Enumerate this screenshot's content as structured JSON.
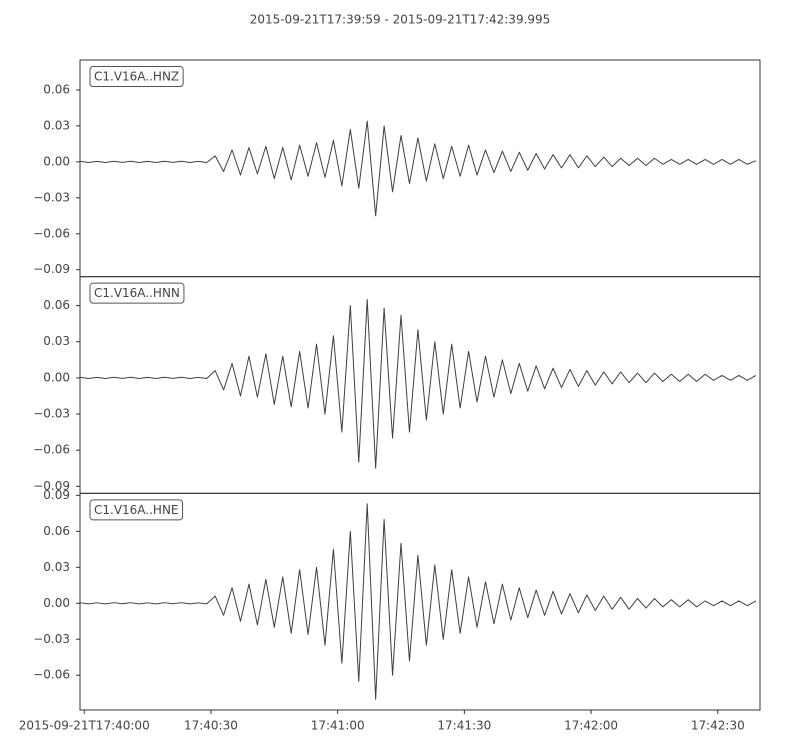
{
  "chart_data": {
    "type": "line",
    "title": "2015-09-21T17:39:59  -  2015-09-21T17:42:39.995",
    "xlim": [
      63599,
      63759.995
    ],
    "xticks": [
      {
        "value": 63600,
        "label": "2015-09-21T17:40:00"
      },
      {
        "value": 63630,
        "label": "17:40:30"
      },
      {
        "value": 63660,
        "label": "17:41:00"
      },
      {
        "value": 63690,
        "label": "17:41:30"
      },
      {
        "value": 63720,
        "label": "17:42:00"
      },
      {
        "value": 63750,
        "label": "17:42:30"
      }
    ],
    "x": [
      63599,
      63601,
      63603,
      63605,
      63607,
      63609,
      63611,
      63613,
      63615,
      63617,
      63619,
      63621,
      63623,
      63625,
      63627,
      63629,
      63631,
      63633,
      63635,
      63637,
      63639,
      63641,
      63643,
      63645,
      63647,
      63649,
      63651,
      63653,
      63655,
      63657,
      63659,
      63661,
      63663,
      63665,
      63667,
      63669,
      63671,
      63673,
      63675,
      63677,
      63679,
      63681,
      63683,
      63685,
      63687,
      63689,
      63691,
      63693,
      63695,
      63697,
      63699,
      63701,
      63703,
      63705,
      63707,
      63709,
      63711,
      63713,
      63715,
      63717,
      63719,
      63721,
      63723,
      63725,
      63727,
      63729,
      63731,
      63733,
      63735,
      63737,
      63739,
      63741,
      63743,
      63745,
      63747,
      63749,
      63751,
      63753,
      63755,
      63757,
      63759
    ],
    "series": [
      {
        "name": "C1.V16A..HNZ",
        "color": "#404040",
        "ylim": [
          -0.0958,
          0.085
        ],
        "yticks": [
          0.06,
          0.03,
          {
            "value": 0,
            "label": "0.00"
          },
          {
            "value": -0.03,
            "label": "−0.03"
          },
          {
            "value": -0.06,
            "label": "−0.06"
          },
          {
            "value": -0.09,
            "label": "−0.09"
          }
        ],
        "values": [
          0.0005,
          -0.0005,
          0.0004,
          -0.0005,
          0.0005,
          -0.0004,
          0.0005,
          -0.0005,
          0.0004,
          -0.0005,
          0.0005,
          -0.0004,
          0.0005,
          -0.0005,
          0.0004,
          -0.0005,
          0.005,
          -0.008,
          0.01,
          -0.011,
          0.012,
          -0.01,
          0.013,
          -0.014,
          0.012,
          -0.015,
          0.014,
          -0.012,
          0.016,
          -0.013,
          0.018,
          -0.02,
          0.027,
          -0.022,
          0.034,
          -0.045,
          0.03,
          -0.025,
          0.022,
          -0.018,
          0.02,
          -0.016,
          0.015,
          -0.014,
          0.013,
          -0.012,
          0.014,
          -0.011,
          0.01,
          -0.009,
          0.009,
          -0.008,
          0.008,
          -0.007,
          0.007,
          -0.006,
          0.006,
          -0.005,
          0.006,
          -0.005,
          0.005,
          -0.004,
          0.004,
          -0.004,
          0.003,
          -0.003,
          0.003,
          -0.003,
          0.003,
          -0.002,
          0.002,
          -0.002,
          0.002,
          -0.002,
          0.002,
          -0.002,
          0.002,
          -0.002,
          0.002,
          -0.002,
          0.001
        ]
      },
      {
        "name": "C1.V16A..HNN",
        "color": "#404040",
        "ylim": [
          -0.0958,
          0.084
        ],
        "yticks": [
          0.06,
          0.03,
          {
            "value": 0,
            "label": "0.00"
          },
          {
            "value": -0.03,
            "label": "−0.03"
          },
          {
            "value": -0.06,
            "label": "−0.06"
          },
          {
            "value": -0.09,
            "label": "−0.09"
          }
        ],
        "values": [
          0.0005,
          -0.0005,
          0.0004,
          -0.0005,
          0.0005,
          -0.0004,
          0.0005,
          -0.0005,
          0.0004,
          -0.0005,
          0.0005,
          -0.0004,
          0.0005,
          -0.0005,
          0.0004,
          -0.0005,
          0.006,
          -0.01,
          0.012,
          -0.015,
          0.018,
          -0.016,
          0.02,
          -0.022,
          0.018,
          -0.024,
          0.022,
          -0.025,
          0.028,
          -0.03,
          0.035,
          -0.045,
          0.06,
          -0.07,
          0.065,
          -0.075,
          0.058,
          -0.05,
          0.052,
          -0.045,
          0.04,
          -0.035,
          0.03,
          -0.03,
          0.028,
          -0.025,
          0.022,
          -0.02,
          0.018,
          -0.016,
          0.015,
          -0.013,
          0.012,
          -0.011,
          0.01,
          -0.009,
          0.008,
          -0.008,
          0.007,
          -0.007,
          0.006,
          -0.006,
          0.005,
          -0.005,
          0.005,
          -0.004,
          0.004,
          -0.004,
          0.004,
          -0.003,
          0.003,
          -0.003,
          0.003,
          -0.003,
          0.003,
          -0.002,
          0.002,
          -0.002,
          0.002,
          -0.002,
          0.002
        ]
      },
      {
        "name": "C1.V16A..HNE",
        "color": "#404040",
        "ylim": [
          -0.089,
          0.0917
        ],
        "yticks": [
          0.09,
          0.06,
          0.03,
          {
            "value": 0,
            "label": "0.00"
          },
          {
            "value": -0.03,
            "label": "−0.03"
          },
          {
            "value": -0.06,
            "label": "−0.06"
          }
        ],
        "values": [
          0.0005,
          -0.0005,
          0.0004,
          -0.0005,
          0.0005,
          -0.0004,
          0.0005,
          -0.0005,
          0.0004,
          -0.0005,
          0.0005,
          -0.0004,
          0.0005,
          -0.0005,
          0.0004,
          -0.0005,
          0.006,
          -0.01,
          0.013,
          -0.015,
          0.016,
          -0.018,
          0.02,
          -0.02,
          0.022,
          -0.025,
          0.028,
          -0.026,
          0.03,
          -0.035,
          0.045,
          -0.05,
          0.06,
          -0.065,
          0.083,
          -0.08,
          0.07,
          -0.06,
          0.05,
          -0.048,
          0.04,
          -0.035,
          0.032,
          -0.03,
          0.028,
          -0.025,
          0.022,
          -0.02,
          0.018,
          -0.017,
          0.016,
          -0.014,
          0.013,
          -0.012,
          0.011,
          -0.01,
          0.01,
          -0.009,
          0.008,
          -0.008,
          0.007,
          -0.006,
          0.006,
          -0.005,
          0.005,
          -0.005,
          0.004,
          -0.004,
          0.004,
          -0.003,
          0.003,
          -0.003,
          0.003,
          -0.003,
          0.002,
          -0.002,
          0.002,
          -0.002,
          0.002,
          -0.002,
          0.002
        ]
      }
    ]
  }
}
